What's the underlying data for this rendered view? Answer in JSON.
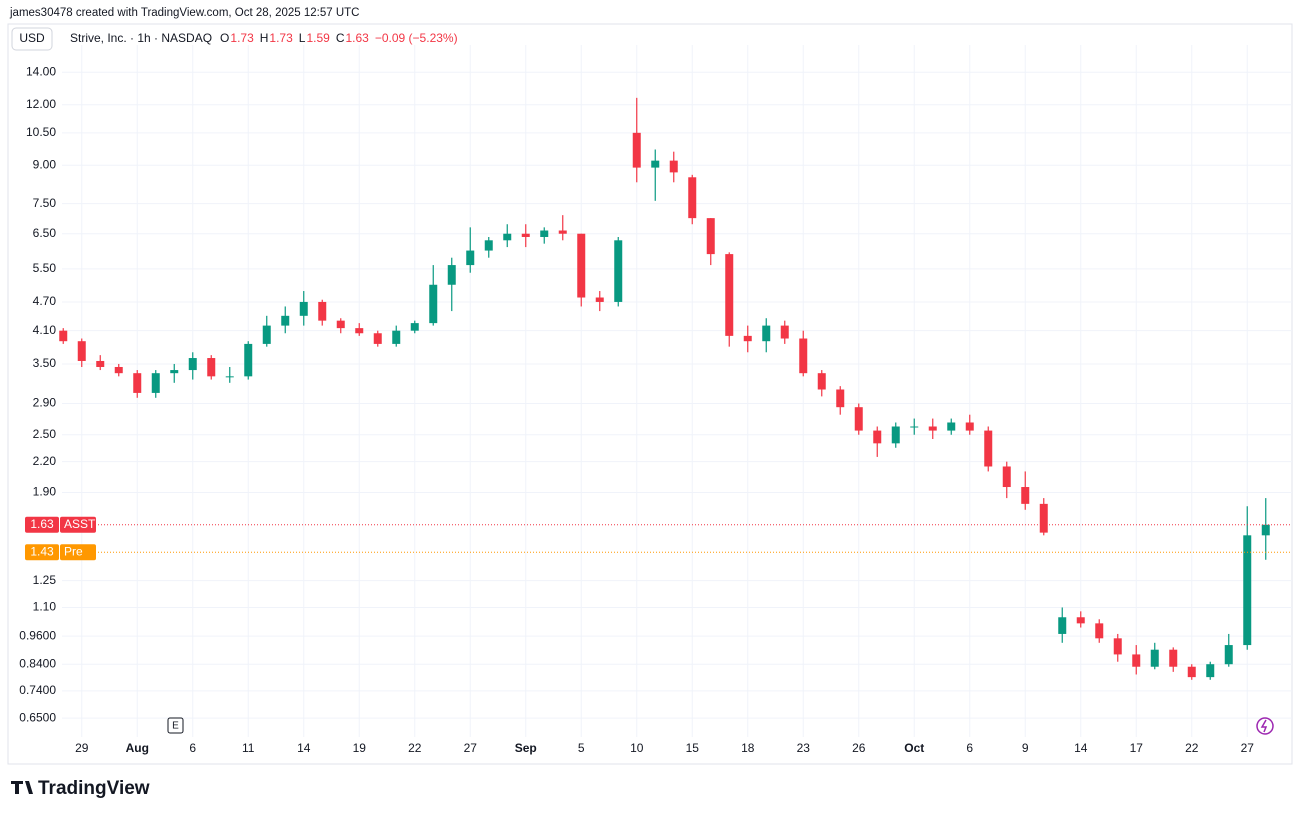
{
  "header": {
    "credit": "james30478 created with TradingView.com, Oct 28, 2025 12:57 UTC"
  },
  "chart_data": {
    "type": "candlestick",
    "currency": "USD",
    "title": "Strive, Inc. · 1h · NASDAQ",
    "ohlc_legend": [
      {
        "label": "O",
        "value": "1.73"
      },
      {
        "label": "H",
        "value": "1.73"
      },
      {
        "label": "L",
        "value": "1.59"
      },
      {
        "label": "C",
        "value": "1.63"
      }
    ],
    "change": "−0.09 (−5.23%)",
    "log": true,
    "grid": true,
    "up_color": "#089981",
    "down_color": "#f23645",
    "categories": [
      null,
      "29",
      null,
      null,
      "Aug",
      null,
      null,
      "6",
      null,
      null,
      "11",
      null,
      null,
      "14",
      null,
      null,
      "19",
      null,
      null,
      "22",
      null,
      null,
      "27",
      null,
      null,
      "Sep",
      null,
      null,
      "5",
      null,
      null,
      "10",
      null,
      null,
      "15",
      null,
      null,
      "18",
      null,
      null,
      "23",
      null,
      null,
      "26",
      null,
      null,
      "Oct",
      null,
      null,
      "6",
      null,
      null,
      "9",
      null,
      null,
      "14",
      null,
      null,
      "17",
      null,
      null,
      "22",
      null,
      null,
      "27",
      null
    ],
    "series": [
      {
        "name": "ASST",
        "open": [
          4.1,
          3.9,
          3.55,
          3.45,
          3.35,
          3.05,
          3.35,
          3.4,
          3.6,
          3.3,
          3.3,
          3.85,
          4.2,
          4.4,
          4.7,
          4.3,
          4.15,
          4.05,
          3.85,
          4.1,
          4.25,
          5.1,
          5.6,
          6.0,
          6.3,
          6.5,
          6.4,
          6.6,
          6.5,
          4.8,
          4.7,
          10.5,
          8.9,
          9.2,
          8.5,
          7.0,
          5.9,
          4.0,
          3.9,
          4.2,
          3.95,
          3.35,
          3.1,
          2.85,
          2.55,
          2.4,
          2.6,
          2.6,
          2.55,
          2.65,
          2.55,
          2.15,
          1.95,
          1.8,
          0.97,
          1.05,
          1.02,
          0.95,
          0.88,
          0.83,
          0.9,
          0.83,
          0.79,
          0.84,
          0.92,
          1.55
        ],
        "high": [
          4.15,
          3.95,
          3.65,
          3.5,
          3.4,
          3.4,
          3.5,
          3.7,
          3.65,
          3.45,
          3.9,
          4.4,
          4.6,
          4.95,
          4.75,
          4.35,
          4.25,
          4.1,
          4.2,
          4.3,
          5.6,
          5.8,
          6.7,
          6.4,
          6.8,
          6.8,
          6.7,
          7.1,
          6.5,
          4.95,
          6.4,
          12.4,
          9.7,
          9.6,
          8.6,
          7.0,
          5.95,
          4.2,
          4.35,
          4.3,
          4.1,
          3.4,
          3.15,
          2.9,
          2.6,
          2.65,
          2.7,
          2.7,
          2.7,
          2.75,
          2.6,
          2.2,
          2.1,
          1.85,
          1.1,
          1.08,
          1.04,
          0.97,
          0.92,
          0.93,
          0.91,
          0.84,
          0.85,
          0.97,
          1.78,
          1.85
        ],
        "low": [
          3.85,
          3.45,
          3.4,
          3.3,
          2.98,
          2.98,
          3.2,
          3.25,
          3.25,
          3.2,
          3.25,
          3.8,
          4.05,
          4.2,
          4.2,
          4.05,
          4.0,
          3.8,
          3.8,
          4.05,
          4.2,
          4.5,
          5.4,
          5.8,
          6.1,
          6.1,
          6.2,
          6.3,
          4.6,
          4.5,
          4.6,
          8.3,
          7.6,
          8.3,
          6.8,
          5.6,
          3.8,
          3.7,
          3.7,
          3.85,
          3.3,
          3.0,
          2.75,
          2.5,
          2.25,
          2.35,
          2.5,
          2.45,
          2.5,
          2.5,
          2.1,
          1.85,
          1.75,
          1.55,
          0.93,
          1.0,
          0.93,
          0.85,
          0.8,
          0.82,
          0.81,
          0.78,
          0.78,
          0.83,
          0.9,
          1.38
        ],
        "close": [
          3.9,
          3.55,
          3.45,
          3.35,
          3.05,
          3.35,
          3.4,
          3.6,
          3.3,
          3.3,
          3.85,
          4.2,
          4.4,
          4.7,
          4.3,
          4.15,
          4.05,
          3.85,
          4.1,
          4.25,
          5.1,
          5.6,
          6.0,
          6.3,
          6.5,
          6.4,
          6.6,
          6.5,
          4.8,
          4.7,
          6.3,
          8.9,
          9.2,
          8.7,
          7.0,
          5.9,
          4.0,
          3.9,
          4.2,
          3.95,
          3.35,
          3.1,
          2.85,
          2.55,
          2.4,
          2.6,
          2.6,
          2.55,
          2.65,
          2.55,
          2.15,
          1.95,
          1.8,
          1.57,
          1.05,
          1.02,
          0.95,
          0.88,
          0.83,
          0.9,
          0.83,
          0.79,
          0.84,
          0.92,
          1.55,
          1.63
        ]
      }
    ],
    "price_lines": [
      {
        "value": 1.63,
        "name": "ASST",
        "color": "#f23645"
      },
      {
        "value": 1.43,
        "name": "Pre",
        "color": "#ff9800"
      }
    ],
    "earnings_marker": "E",
    "ylim": [
      0.6,
      15.2
    ],
    "yticks": [
      {
        "value": 14,
        "label": "14.00"
      },
      {
        "value": 12,
        "label": "12.00"
      },
      {
        "value": 10.5,
        "label": "10.50"
      },
      {
        "value": 9,
        "label": "9.00"
      },
      {
        "value": 7.5,
        "label": "7.50"
      },
      {
        "value": 6.5,
        "label": "6.50"
      },
      {
        "value": 5.5,
        "label": "5.50"
      },
      {
        "value": 4.7,
        "label": "4.70"
      },
      {
        "value": 4.1,
        "label": "4.10"
      },
      {
        "value": 3.5,
        "label": "3.50"
      },
      {
        "value": 2.9,
        "label": "2.90"
      },
      {
        "value": 2.5,
        "label": "2.50"
      },
      {
        "value": 2.2,
        "label": "2.20"
      },
      {
        "value": 1.9,
        "label": "1.90"
      },
      {
        "value": 1.25,
        "label": "1.25"
      },
      {
        "value": 1.1,
        "label": "1.10"
      },
      {
        "value": 0.96,
        "label": "0.9600"
      },
      {
        "value": 0.84,
        "label": "0.8400"
      },
      {
        "value": 0.74,
        "label": "0.7400"
      },
      {
        "value": 0.65,
        "label": "0.6500"
      }
    ]
  },
  "footer": {
    "brand": "TradingView"
  }
}
